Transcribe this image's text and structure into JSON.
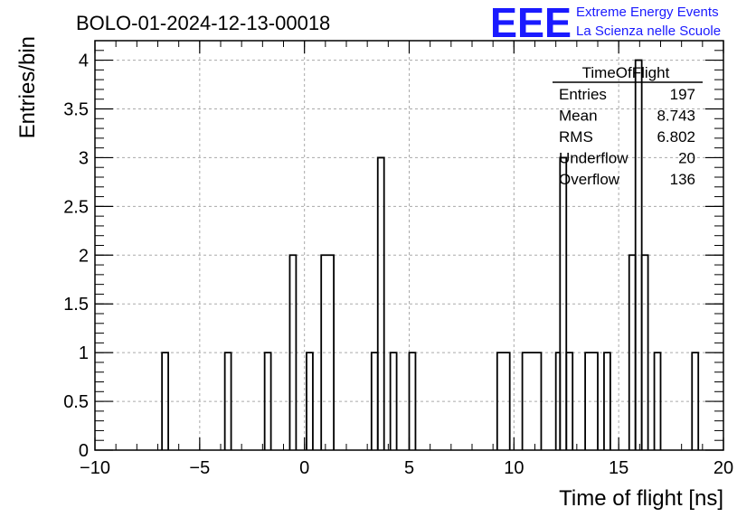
{
  "chart_data": {
    "type": "bar",
    "title": "BOLO-01-2024-12-13-00018",
    "xlabel": "Time of flight [ns]",
    "ylabel": "Entries/bin",
    "xlim": [
      -10,
      20
    ],
    "ylim": [
      0,
      4.2
    ],
    "grid": true,
    "x_ticks": [
      "−10",
      "−5",
      "0",
      "5",
      "10",
      "15",
      "20"
    ],
    "y_ticks": [
      "0",
      "0.5",
      "1",
      "1.5",
      "2",
      "2.5",
      "3",
      "3.5",
      "4"
    ],
    "bins": [
      {
        "x_low": -6.8,
        "x_high": -6.5,
        "count": 1
      },
      {
        "x_low": -3.8,
        "x_high": -3.5,
        "count": 1
      },
      {
        "x_low": -1.9,
        "x_high": -1.6,
        "count": 1
      },
      {
        "x_low": -0.7,
        "x_high": -0.4,
        "count": 2
      },
      {
        "x_low": 0.1,
        "x_high": 0.4,
        "count": 1
      },
      {
        "x_low": 0.8,
        "x_high": 1.4,
        "count": 2
      },
      {
        "x_low": 3.2,
        "x_high": 3.5,
        "count": 1
      },
      {
        "x_low": 3.5,
        "x_high": 3.8,
        "count": 3
      },
      {
        "x_low": 4.1,
        "x_high": 4.4,
        "count": 1
      },
      {
        "x_low": 5.0,
        "x_high": 5.3,
        "count": 1
      },
      {
        "x_low": 9.2,
        "x_high": 9.8,
        "count": 1
      },
      {
        "x_low": 10.4,
        "x_high": 11.3,
        "count": 1
      },
      {
        "x_low": 12.0,
        "x_high": 12.2,
        "count": 1
      },
      {
        "x_low": 12.2,
        "x_high": 12.5,
        "count": 3
      },
      {
        "x_low": 12.5,
        "x_high": 12.8,
        "count": 1
      },
      {
        "x_low": 13.4,
        "x_high": 14.0,
        "count": 1
      },
      {
        "x_low": 14.3,
        "x_high": 14.6,
        "count": 1
      },
      {
        "x_low": 15.5,
        "x_high": 15.8,
        "count": 2
      },
      {
        "x_low": 15.8,
        "x_high": 16.1,
        "count": 4
      },
      {
        "x_low": 16.1,
        "x_high": 16.4,
        "count": 2
      },
      {
        "x_low": 16.7,
        "x_high": 17.0,
        "count": 1
      },
      {
        "x_low": 18.5,
        "x_high": 18.8,
        "count": 1
      }
    ],
    "stats_box": {
      "name": "TimeOfFlight",
      "rows": [
        {
          "label": "Entries",
          "value": "197"
        },
        {
          "label": "Mean",
          "value": "8.743"
        },
        {
          "label": "RMS",
          "value": "6.802"
        },
        {
          "label": "Underflow",
          "value": "20"
        },
        {
          "label": "Overflow",
          "value": "136"
        }
      ]
    },
    "legend": "top-right"
  },
  "logo": {
    "mark": "EEE",
    "line1": "Extreme Energy Events",
    "line2": "La Scienza nelle Scuole",
    "color": "#1a1aff"
  }
}
